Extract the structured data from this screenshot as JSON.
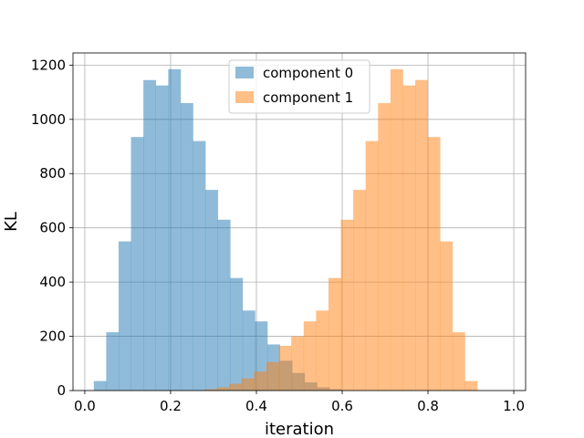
{
  "chart_data": {
    "type": "bar",
    "xlabel": "iteration",
    "ylabel": "KL",
    "xlim": [
      -0.0275,
      1.0275
    ],
    "ylim": [
      0,
      1245
    ],
    "xticks": [
      0.0,
      0.2,
      0.4,
      0.6,
      0.8,
      1.0
    ],
    "xtick_labels": [
      "0.0",
      "0.2",
      "0.4",
      "0.6",
      "0.8",
      "1.0"
    ],
    "yticks": [
      0,
      200,
      400,
      600,
      800,
      1000,
      1200
    ],
    "ytick_labels": [
      "0",
      "200",
      "400",
      "600",
      "800",
      "1000",
      "1200"
    ],
    "grid": true,
    "legend_position": "top-center",
    "series": [
      {
        "name": "component 0",
        "color": "#1f77b4",
        "alpha": 0.5,
        "bin_start": 0.021,
        "bin_width": 0.0289,
        "values": [
          35,
          215,
          550,
          935,
          1145,
          1125,
          1185,
          1060,
          920,
          740,
          630,
          415,
          295,
          255,
          170,
          110,
          65,
          30,
          12,
          5
        ]
      },
      {
        "name": "component 1",
        "color": "#ff7f0e",
        "alpha": 0.5,
        "bin_start": 0.279,
        "bin_width": 0.0289,
        "values": [
          5,
          12,
          25,
          45,
          70,
          105,
          165,
          200,
          255,
          295,
          415,
          630,
          740,
          920,
          1060,
          1185,
          1125,
          1145,
          935,
          550,
          215,
          35
        ]
      }
    ]
  }
}
